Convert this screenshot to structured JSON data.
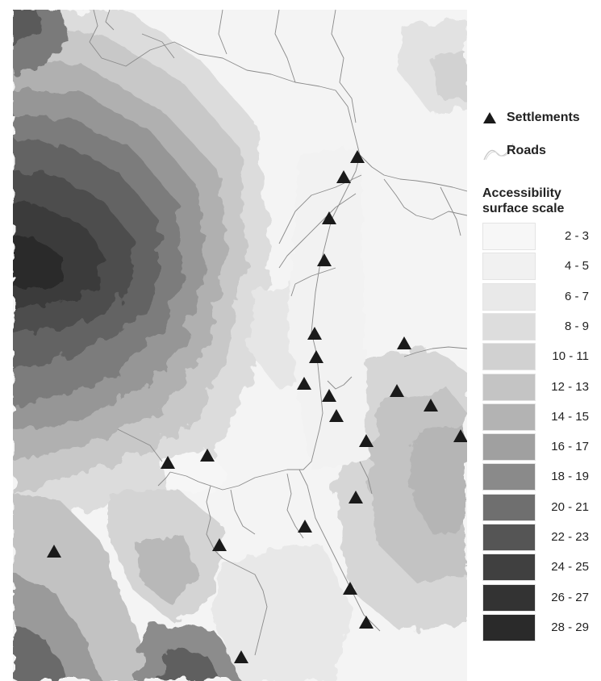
{
  "legend": {
    "settlements_label": "Settlements",
    "roads_label": "Roads",
    "scale_title": "Accessibility surface scale",
    "scale": [
      {
        "label": "2 - 3",
        "color": "#f7f7f7"
      },
      {
        "label": "4 - 5",
        "color": "#f1f1f1"
      },
      {
        "label": "6 - 7",
        "color": "#e9e9e9"
      },
      {
        "label": "8 - 9",
        "color": "#dddddd"
      },
      {
        "label": "10 - 11",
        "color": "#d1d1d1"
      },
      {
        "label": "12 - 13",
        "color": "#c4c4c4"
      },
      {
        "label": "14 - 15",
        "color": "#b3b3b3"
      },
      {
        "label": "16 - 17",
        "color": "#a0a0a0"
      },
      {
        "label": "18 - 19",
        "color": "#8a8a8a"
      },
      {
        "label": "20 - 21",
        "color": "#6f6f6f"
      },
      {
        "label": "22 - 23",
        "color": "#555555"
      },
      {
        "label": "24 - 25",
        "color": "#404040"
      },
      {
        "label": "26 - 27",
        "color": "#333333"
      },
      {
        "label": "28 - 29",
        "color": "#2a2a2a"
      }
    ]
  },
  "colors": {
    "settlement": "#1a1a1a",
    "road": "#8a8a8a",
    "background": "#f4f4f4"
  }
}
